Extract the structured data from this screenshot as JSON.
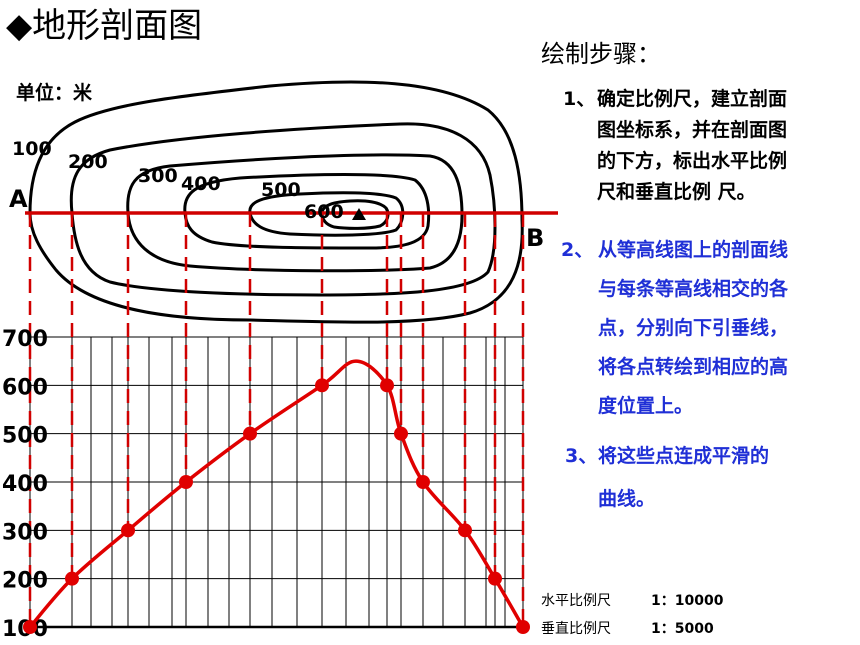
{
  "title": "◆地形剖面图",
  "unit_label": "单位：米",
  "steps_title": "绘制步骤：",
  "steps": [
    {
      "num": "1、",
      "lines": [
        "确定比例尺，建立剖面",
        "图坐标系，并在剖面图",
        "的下方，标出水平比例",
        "尺和垂直比例 尺。"
      ]
    },
    {
      "num": "2、",
      "lines": [
        "从等高线图上的剖面线",
        "与每条等高线相交的各",
        "点，分别向下引垂线，",
        "将各点转绘到相应的高",
        "度位置上。"
      ]
    },
    {
      "num": "3、",
      "lines": [
        "将这些点连成平滑的",
        "曲线。"
      ]
    }
  ],
  "scales": {
    "horizontal_label": "水平比例尺",
    "horizontal_value": "1：10000",
    "vertical_label": "垂直比例尺",
    "vertical_value": "1：5000"
  },
  "contour_labels": [
    "100",
    "200",
    "300",
    "400",
    "500",
    "600"
  ],
  "endpoints": {
    "a": "A",
    "b": "B"
  },
  "colors": {
    "profile": "#e00000",
    "section_line": "#d00000",
    "contour": "#000000",
    "step_highlight": "#1f2fd6"
  },
  "chart_data": {
    "type": "line",
    "ylim": [
      100,
      700
    ],
    "yticks": [
      "100",
      "200",
      "300",
      "400",
      "500",
      "600",
      "700"
    ],
    "y": [
      100,
      200,
      300,
      400,
      500,
      600,
      600,
      500,
      400,
      300,
      200,
      100
    ],
    "peak": 650
  }
}
